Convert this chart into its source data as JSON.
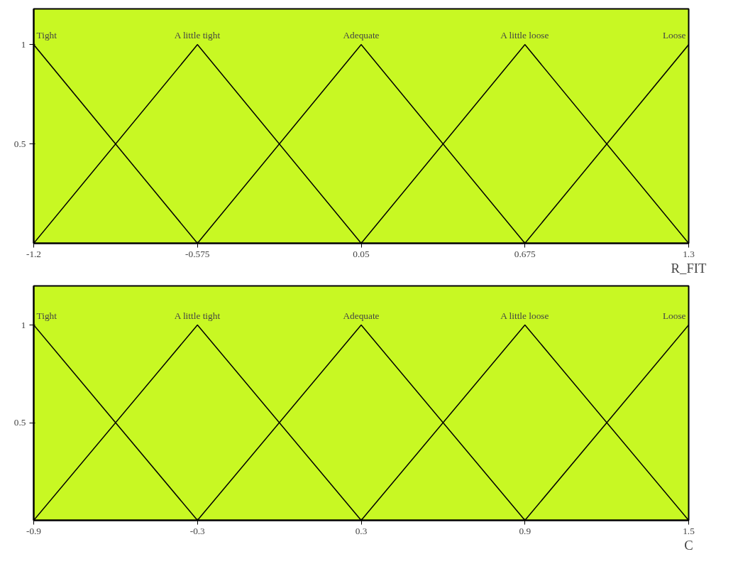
{
  "chart_data": [
    {
      "type": "line",
      "xlabel": "R_FIT",
      "xlim": [
        -1.2,
        1.3
      ],
      "xticks": [
        -1.2,
        -0.575,
        0.05,
        0.675,
        1.3
      ],
      "ylim": [
        0,
        1.18
      ],
      "yticks": [
        0.5,
        1
      ],
      "grid": false,
      "legend": false,
      "marker": "none",
      "line_style": "solid",
      "series": [
        {
          "name": "Tight",
          "color": "#000000",
          "x": [
            -1.2,
            -0.575
          ],
          "values": [
            1,
            0
          ]
        },
        {
          "name": "A little tight",
          "color": "#000000",
          "x": [
            -1.2,
            -0.575,
            0.05
          ],
          "values": [
            0,
            1,
            0
          ]
        },
        {
          "name": "Adequate",
          "color": "#000000",
          "x": [
            -0.575,
            0.05,
            0.675
          ],
          "values": [
            0,
            1,
            0
          ]
        },
        {
          "name": "A little loose",
          "color": "#000000",
          "x": [
            0.05,
            0.675,
            1.3
          ],
          "values": [
            0,
            1,
            0
          ]
        },
        {
          "name": "Loose",
          "color": "#000000",
          "x": [
            0.675,
            1.3
          ],
          "values": [
            0,
            1
          ]
        }
      ]
    },
    {
      "type": "line",
      "xlabel": "C",
      "xlim": [
        -0.9,
        1.5
      ],
      "xticks": [
        -0.9,
        -0.3,
        0.3,
        0.9,
        1.5
      ],
      "ylim": [
        0,
        1.2
      ],
      "yticks": [
        0.5,
        1
      ],
      "grid": false,
      "legend": false,
      "marker": "none",
      "line_style": "solid",
      "series": [
        {
          "name": "Tight",
          "color": "#000000",
          "x": [
            -0.9,
            -0.3
          ],
          "values": [
            1,
            0
          ]
        },
        {
          "name": "A little tight",
          "color": "#000000",
          "x": [
            -0.9,
            -0.3,
            0.3
          ],
          "values": [
            0,
            1,
            0
          ]
        },
        {
          "name": "Adequate",
          "color": "#000000",
          "x": [
            -0.3,
            0.3,
            0.9
          ],
          "values": [
            0,
            1,
            0
          ]
        },
        {
          "name": "A little loose",
          "color": "#000000",
          "x": [
            0.3,
            0.9,
            1.5
          ],
          "values": [
            0,
            1,
            0
          ]
        },
        {
          "name": "Loose",
          "color": "#000000",
          "x": [
            0.9,
            1.5
          ],
          "values": [
            0,
            1
          ]
        }
      ]
    }
  ]
}
